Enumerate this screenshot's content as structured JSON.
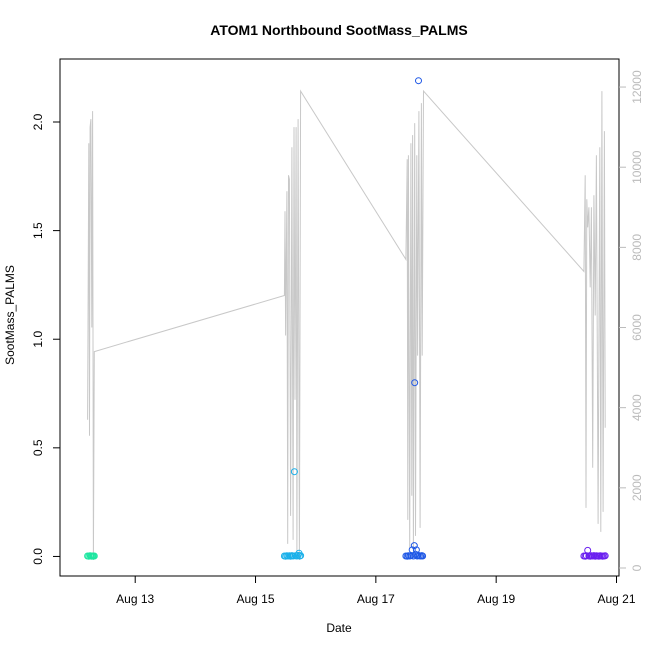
{
  "chart_data": {
    "type": "scatter",
    "title": "ATOM1 Northbound SootMass_PALMS",
    "xlabel": "Date",
    "ylabel": "SootMass_PALMS",
    "xlim": [
      "2016-08-11 18:00",
      "2016-08-21 01:00"
    ],
    "ylim": [
      -0.09,
      2.29
    ],
    "y2lim": [
      -200,
      12700
    ],
    "x_ticks": [
      {
        "label": "Aug 13",
        "date": "2016-08-13"
      },
      {
        "label": "Aug 15",
        "date": "2016-08-15"
      },
      {
        "label": "Aug 17",
        "date": "2016-08-17"
      },
      {
        "label": "Aug 19",
        "date": "2016-08-19"
      },
      {
        "label": "Aug 21",
        "date": "2016-08-21"
      }
    ],
    "y_ticks": [
      "0.0",
      "0.5",
      "1.0",
      "1.5",
      "2.0"
    ],
    "y2_ticks": [
      "0",
      "2000",
      "4000",
      "6000",
      "8000",
      "10000",
      "12000"
    ],
    "grid": false,
    "secondary_series": {
      "name": "",
      "color": "#c8c8c8",
      "points": [
        [
          "2016-08-12 05:00",
          3700
        ],
        [
          "2016-08-12 05:30",
          10600
        ],
        [
          "2016-08-12 05:45",
          3300
        ],
        [
          "2016-08-12 06:00",
          11000
        ],
        [
          "2016-08-12 06:20",
          11200
        ],
        [
          "2016-08-12 06:40",
          6000
        ],
        [
          "2016-08-12 07:00",
          11400
        ],
        [
          "2016-08-12 07:20",
          200
        ],
        [
          "2016-08-12 07:40",
          5400
        ],
        [
          "2016-08-15 11:30",
          6800
        ],
        [
          "2016-08-15 11:45",
          8900
        ],
        [
          "2016-08-15 12:00",
          5800
        ],
        [
          "2016-08-15 12:30",
          9400
        ],
        [
          "2016-08-15 12:50",
          600
        ],
        [
          "2016-08-15 13:10",
          9800
        ],
        [
          "2016-08-15 13:30",
          9700
        ],
        [
          "2016-08-15 14:00",
          1300
        ],
        [
          "2016-08-15 14:30",
          10500
        ],
        [
          "2016-08-15 15:00",
          700
        ],
        [
          "2016-08-15 15:20",
          11000
        ],
        [
          "2016-08-15 15:45",
          4200
        ],
        [
          "2016-08-15 16:10",
          11000
        ],
        [
          "2016-08-15 16:30",
          400
        ],
        [
          "2016-08-15 17:00",
          11200
        ],
        [
          "2016-08-15 17:30",
          200
        ],
        [
          "2016-08-15 18:00",
          11900
        ],
        [
          "2016-08-17 12:00",
          7700
        ],
        [
          "2016-08-17 12:30",
          10200
        ],
        [
          "2016-08-17 12:45",
          1200
        ],
        [
          "2016-08-17 13:00",
          10300
        ],
        [
          "2016-08-17 13:30",
          500
        ],
        [
          "2016-08-17 14:00",
          10600
        ],
        [
          "2016-08-17 14:20",
          1800
        ],
        [
          "2016-08-17 14:40",
          10800
        ],
        [
          "2016-08-17 15:00",
          400
        ],
        [
          "2016-08-17 15:30",
          11100
        ],
        [
          "2016-08-17 15:50",
          800
        ],
        [
          "2016-08-17 16:20",
          10300
        ],
        [
          "2016-08-17 16:40",
          5300
        ],
        [
          "2016-08-17 17:10",
          11400
        ],
        [
          "2016-08-17 17:40",
          1000
        ],
        [
          "2016-08-17 18:10",
          11600
        ],
        [
          "2016-08-17 18:30",
          5300
        ],
        [
          "2016-08-17 19:00",
          11900
        ],
        [
          "2016-08-20 11:00",
          7400
        ],
        [
          "2016-08-20 11:30",
          9800
        ],
        [
          "2016-08-20 11:50",
          1500
        ],
        [
          "2016-08-20 12:10",
          9200
        ],
        [
          "2016-08-20 12:30",
          8500
        ],
        [
          "2016-08-20 13:00",
          9000
        ],
        [
          "2016-08-20 13:30",
          7000
        ],
        [
          "2016-08-20 14:00",
          9000
        ],
        [
          "2016-08-20 14:30",
          2500
        ],
        [
          "2016-08-20 15:00",
          9300
        ],
        [
          "2016-08-20 15:30",
          6300
        ],
        [
          "2016-08-20 16:00",
          10300
        ],
        [
          "2016-08-20 16:40",
          1100
        ],
        [
          "2016-08-20 17:20",
          10500
        ],
        [
          "2016-08-20 17:45",
          900
        ],
        [
          "2016-08-20 18:10",
          11900
        ],
        [
          "2016-08-20 18:40",
          1400
        ],
        [
          "2016-08-20 19:10",
          10900
        ],
        [
          "2016-08-20 19:30",
          3500
        ]
      ]
    },
    "series": [
      {
        "color": "#1ee6a0",
        "points": [
          [
            "2016-08-12 05:00",
            0.002
          ],
          [
            "2016-08-12 05:30",
            0.001
          ],
          [
            "2016-08-12 06:00",
            0.003
          ],
          [
            "2016-08-12 06:20",
            0.002
          ],
          [
            "2016-08-12 06:40",
            0.001
          ],
          [
            "2016-08-12 07:00",
            0.002
          ],
          [
            "2016-08-12 07:20",
            0.001
          ],
          [
            "2016-08-12 07:40",
            0.002
          ]
        ]
      },
      {
        "color": "#1ab0ea",
        "points": [
          [
            "2016-08-15 11:30",
            0.002
          ],
          [
            "2016-08-15 12:00",
            0.001
          ],
          [
            "2016-08-15 12:30",
            0.003
          ],
          [
            "2016-08-15 13:00",
            0.002
          ],
          [
            "2016-08-15 13:30",
            0.003
          ],
          [
            "2016-08-15 14:00",
            0.001
          ],
          [
            "2016-08-15 14:30",
            0.004
          ],
          [
            "2016-08-15 15:00",
            0.002
          ],
          [
            "2016-08-15 15:30",
            0.39
          ],
          [
            "2016-08-15 16:00",
            0.003
          ],
          [
            "2016-08-15 16:30",
            0.002
          ],
          [
            "2016-08-15 17:00",
            0.005
          ],
          [
            "2016-08-15 17:20",
            0.015
          ],
          [
            "2016-08-15 17:40",
            0.002
          ],
          [
            "2016-08-15 18:00",
            0.004
          ]
        ]
      },
      {
        "color": "#1f58e6",
        "points": [
          [
            "2016-08-17 12:00",
            0.002
          ],
          [
            "2016-08-17 12:30",
            0.001
          ],
          [
            "2016-08-17 13:00",
            0.003
          ],
          [
            "2016-08-17 13:30",
            0.002
          ],
          [
            "2016-08-17 14:00",
            0.004
          ],
          [
            "2016-08-17 14:30",
            0.03
          ],
          [
            "2016-08-17 15:00",
            0.002
          ],
          [
            "2016-08-17 15:20",
            0.05
          ],
          [
            "2016-08-17 15:30",
            0.8
          ],
          [
            "2016-08-17 15:50",
            0.01
          ],
          [
            "2016-08-17 16:10",
            0.03
          ],
          [
            "2016-08-17 16:30",
            0.002
          ],
          [
            "2016-08-17 16:50",
            0.005
          ],
          [
            "2016-08-17 17:00",
            2.19
          ],
          [
            "2016-08-17 17:20",
            0.003
          ],
          [
            "2016-08-17 17:50",
            0.002
          ],
          [
            "2016-08-17 18:20",
            0.004
          ],
          [
            "2016-08-17 18:40",
            0.002
          ]
        ]
      },
      {
        "color": "#6a1ff0",
        "points": [
          [
            "2016-08-20 11:00",
            0.002
          ],
          [
            "2016-08-20 11:30",
            0.001
          ],
          [
            "2016-08-20 12:00",
            0.003
          ],
          [
            "2016-08-20 12:30",
            0.028
          ],
          [
            "2016-08-20 13:00",
            0.002
          ],
          [
            "2016-08-20 13:30",
            0.001
          ],
          [
            "2016-08-20 14:00",
            0.003
          ],
          [
            "2016-08-20 14:30",
            0.002
          ],
          [
            "2016-08-20 15:00",
            0.004
          ],
          [
            "2016-08-20 15:30",
            0.001
          ],
          [
            "2016-08-20 16:00",
            0.003
          ],
          [
            "2016-08-20 16:30",
            0.002
          ],
          [
            "2016-08-20 17:00",
            0.001
          ],
          [
            "2016-08-20 17:30",
            0.003
          ],
          [
            "2016-08-20 18:00",
            0.002
          ],
          [
            "2016-08-20 18:30",
            0.001
          ],
          [
            "2016-08-20 19:00",
            0.002
          ],
          [
            "2016-08-20 19:30",
            0.003
          ]
        ]
      }
    ]
  }
}
